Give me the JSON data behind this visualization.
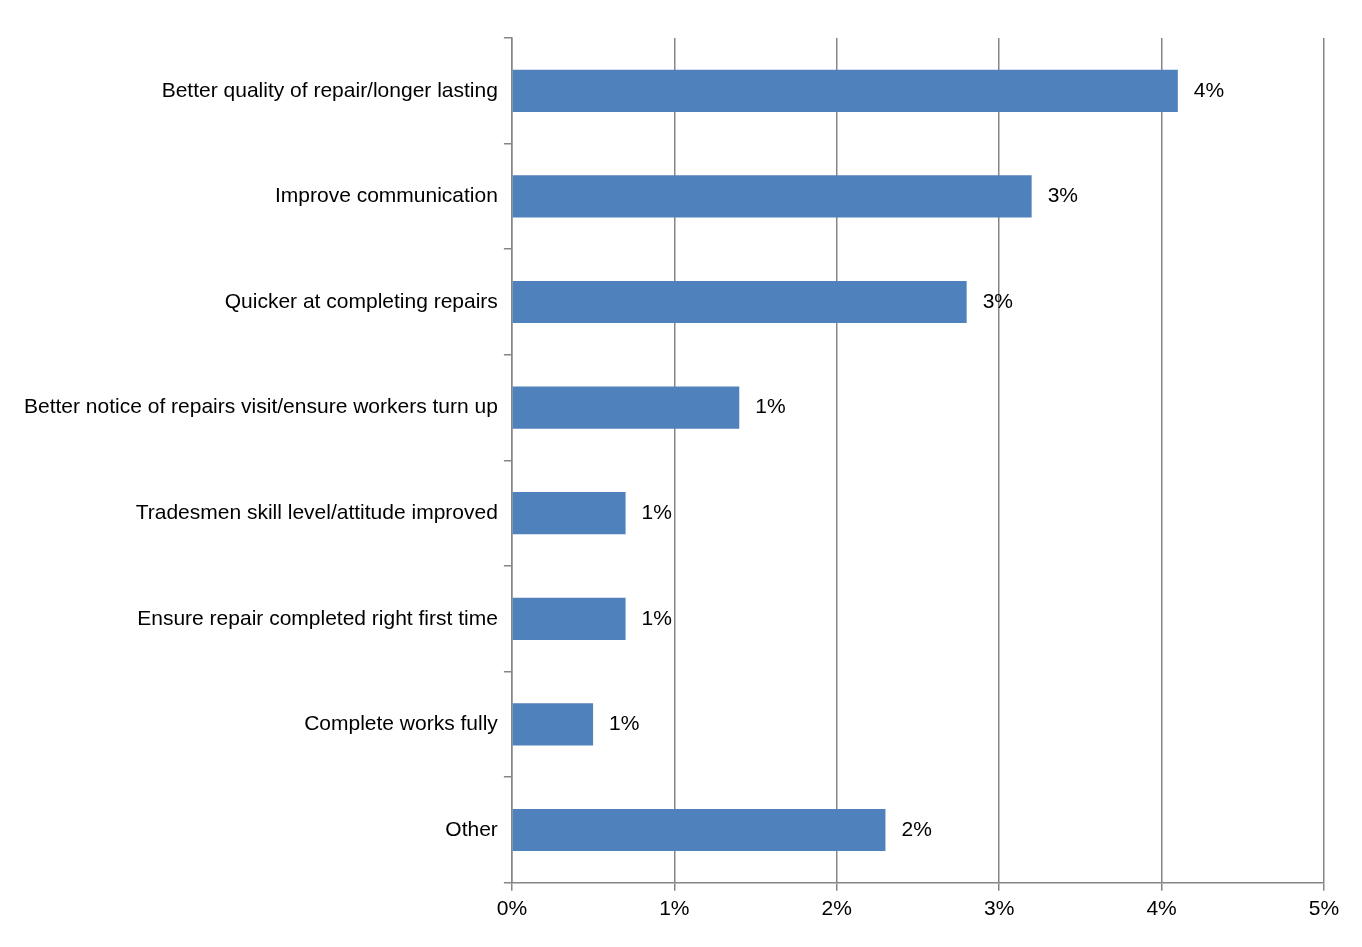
{
  "chart_data": {
    "type": "bar",
    "orientation": "horizontal",
    "categories": [
      "Better quality of repair/longer lasting",
      "Improve communication",
      "Quicker at completing repairs",
      "Better notice of repairs visit/ensure workers turn up",
      "Tradesmen skill level/attitude improved",
      "Ensure repair completed right first time",
      "Complete works fully",
      "Other"
    ],
    "values": [
      4.1,
      3.2,
      2.8,
      1.4,
      0.7,
      0.7,
      0.5,
      2.3
    ],
    "value_labels": [
      "4%",
      "3%",
      "3%",
      "1%",
      "1%",
      "1%",
      "1%",
      "2%"
    ],
    "color": "#4f81bd",
    "xlim": [
      0,
      5
    ],
    "xticks": [
      {
        "value": 0,
        "label": "0%"
      },
      {
        "value": 1,
        "label": "1%"
      },
      {
        "value": 2,
        "label": "2%"
      },
      {
        "value": 3,
        "label": "3%"
      },
      {
        "value": 4,
        "label": "4%"
      },
      {
        "value": 5,
        "label": "5%"
      }
    ],
    "grid": "x",
    "legend": false
  }
}
